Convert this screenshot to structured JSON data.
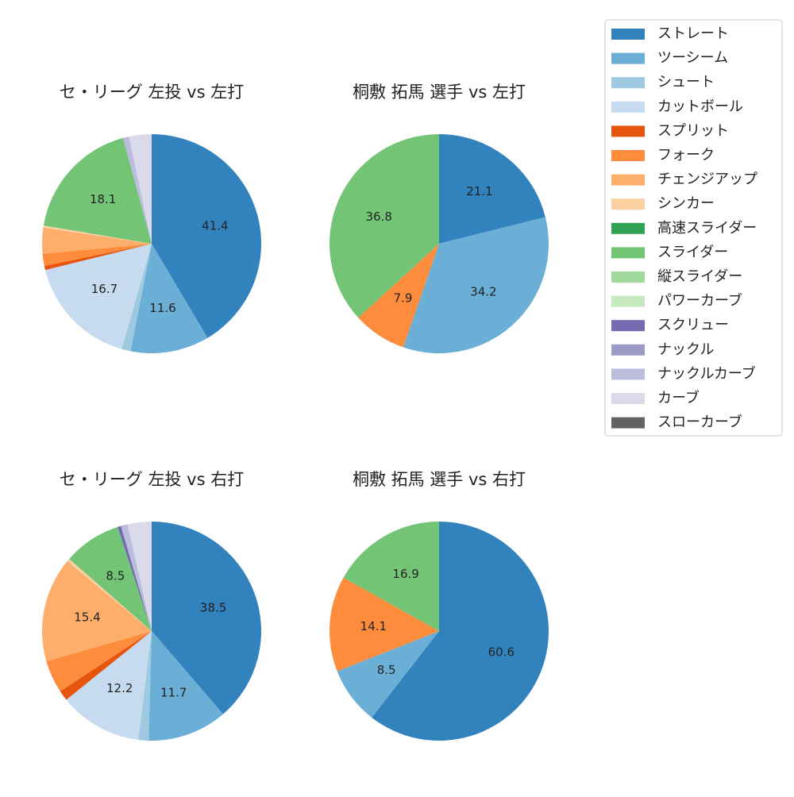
{
  "legend": {
    "labels": [
      "ストレート",
      "ツーシーム",
      "シュート",
      "カットボール",
      "スプリット",
      "フォーク",
      "チェンジアップ",
      "シンカー",
      "高速スライダー",
      "スライダー",
      "縦スライダー",
      "パワーカーブ",
      "スクリュー",
      "ナックル",
      "ナックルカーブ",
      "カーブ",
      "スローカーブ"
    ],
    "colors": [
      "#3182bd",
      "#6baed6",
      "#9ecae1",
      "#c6dbef",
      "#e6550d",
      "#fd8d3c",
      "#fdae6b",
      "#fdd0a2",
      "#31a354",
      "#74c476",
      "#a1d99b",
      "#c7e9c0",
      "#756bb1",
      "#9e9ac8",
      "#bcbddc",
      "#dadaeb",
      "#636363"
    ]
  },
  "chart_data": [
    {
      "type": "pie",
      "title": "セ・リーグ 左投 vs 左打",
      "categories": [
        "ストレート",
        "ツーシーム",
        "シュート",
        "カットボール",
        "スプリット",
        "フォーク",
        "チェンジアップ",
        "シンカー",
        "スライダー",
        "ナックルカーブ",
        "カーブ"
      ],
      "values": [
        41.4,
        11.6,
        1.3,
        16.7,
        0.6,
        1.8,
        3.8,
        0.3,
        18.1,
        0.9,
        3.3
      ]
    },
    {
      "type": "pie",
      "title": "桐敷 拓馬 選手 vs 左打",
      "categories": [
        "ストレート",
        "ツーシーム",
        "フォーク",
        "スライダー"
      ],
      "values": [
        21.1,
        34.2,
        7.9,
        36.8
      ]
    },
    {
      "type": "pie",
      "title": "セ・リーグ 左投 vs 右打",
      "categories": [
        "ストレート",
        "ツーシーム",
        "シュート",
        "カットボール",
        "スプリット",
        "フォーク",
        "チェンジアップ",
        "シンカー",
        "スライダー",
        "スクリュー",
        "ナックルカーブ",
        "カーブ"
      ],
      "values": [
        38.5,
        11.7,
        1.5,
        12.2,
        1.5,
        4.8,
        15.4,
        0.4,
        8.5,
        0.5,
        1.0,
        3.5
      ]
    },
    {
      "type": "pie",
      "title": "桐敷 拓馬 選手 vs 右打",
      "categories": [
        "ストレート",
        "ツーシーム",
        "フォーク",
        "スライダー"
      ],
      "values": [
        60.6,
        8.5,
        14.1,
        16.9
      ]
    }
  ]
}
